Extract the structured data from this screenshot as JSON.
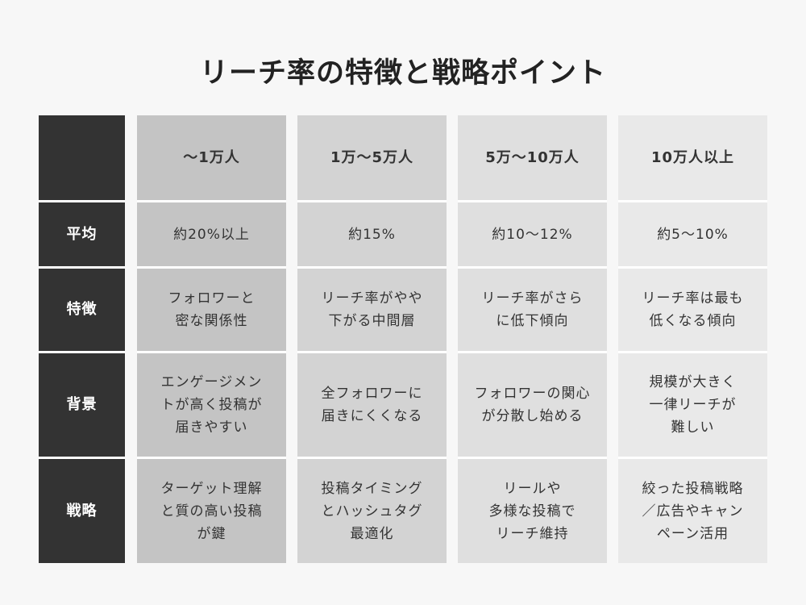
{
  "title": "リーチ率の特徴と戦略ポイント",
  "row_labels": [
    "",
    "平均",
    "特徴",
    "背景",
    "戦略"
  ],
  "columns": [
    {
      "header": "〜1万人",
      "average": "約20%以上",
      "feature": "フォロワーと\n密な関係性",
      "background": "エンゲージメン\nトが高く投稿が\n届きやすい",
      "strategy": "ターゲット理解\nと質の高い投稿\nが鍵"
    },
    {
      "header": "1万〜5万人",
      "average": "約15%",
      "feature": "リーチ率がやや\n下がる中間層",
      "background": "全フォロワーに\n届きにくくなる",
      "strategy": "投稿タイミング\nとハッシュタグ\n最適化"
    },
    {
      "header": "5万〜10万人",
      "average": "約10〜12%",
      "feature": "リーチ率がさら\nに低下傾向",
      "background": "フォロワーの関心\nが分散し始める",
      "strategy": "リールや\n多様な投稿で\nリーチ維持"
    },
    {
      "header": "10万人以上",
      "average": "約5〜10%",
      "feature": "リーチ率は最も\n低くなる傾向",
      "background": "規模が大きく\n一律リーチが\n難しい",
      "strategy": "絞った投稿戦略\n／広告やキャン\nペーン活用"
    }
  ],
  "colors": {
    "label_bg": "#333333",
    "col1": "#c4c4c4",
    "col2": "#d3d3d3",
    "col3": "#dfdfdf",
    "col4": "#e9e9e9",
    "page_bg": "#f7f7f7"
  }
}
